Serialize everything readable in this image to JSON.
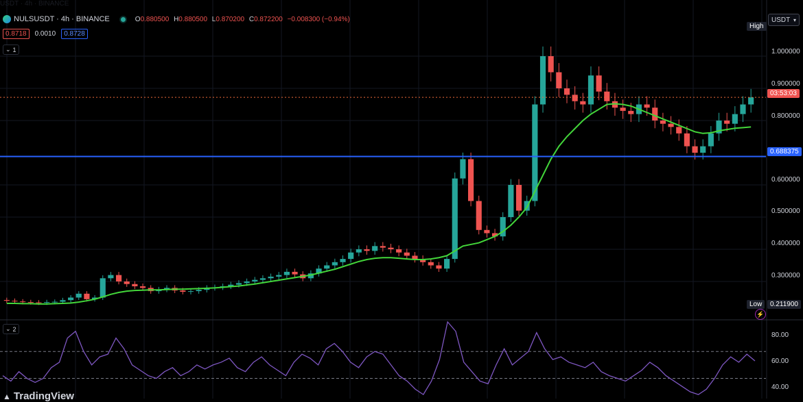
{
  "header": {
    "ghost_line": "USDT · 4h · BINANCE",
    "symbol": "NULSUSDT · 4h · BINANCE",
    "ohlc": {
      "o_label": "O",
      "o": "0.880500",
      "h_label": "H",
      "h": "0.880500",
      "l_label": "L",
      "l": "0.870200",
      "c_label": "C",
      "c": "0.872200",
      "change": "−0.008300 (−0.94%)"
    },
    "bid": "0.8718",
    "spread": "0.0010",
    "ask": "0.8728"
  },
  "panes": {
    "main_tag": "1",
    "rsi_tag": "2"
  },
  "currency_select": "USDT",
  "price_axis": [
    "1.000000",
    "0.900000",
    "0.800000",
    "0.600000",
    "0.500000",
    "0.400000",
    "0.300000"
  ],
  "high_label": "High",
  "low_label": "Low",
  "low_value": "0.211900",
  "countdown": "03:53:03",
  "hline_value": "0.688375",
  "rsi_axis": [
    "80.00",
    "60.00",
    "40.00"
  ],
  "brand": "TradingView",
  "colors": {
    "up": "#26a69a",
    "down": "#ef5350",
    "ma": "#43d63a",
    "rsi": "#7e57c2",
    "hline": "#2962ff",
    "price_line": "#ef6c3a"
  },
  "icons": {
    "collapse": "chevron-down-icon",
    "alert": "lightning-icon",
    "market_status": "green-dot-icon"
  },
  "chart_data": {
    "type": "candlestick",
    "title": "NULSUSDT · 4h · BINANCE",
    "ylim": [
      0.2,
      1.1
    ],
    "last_price": 0.8722,
    "horizontal_line": 0.688375,
    "high_marker": 1.08,
    "low_marker": 0.2119,
    "series": [
      {
        "name": "price",
        "values": [
          0.24,
          0.238,
          0.236,
          0.235,
          0.234,
          0.236,
          0.237,
          0.242,
          0.25,
          0.262,
          0.245,
          0.25,
          0.31,
          0.32,
          0.3,
          0.292,
          0.285,
          0.28,
          0.27,
          0.275,
          0.28,
          0.272,
          0.268,
          0.27,
          0.274,
          0.28,
          0.282,
          0.285,
          0.29,
          0.295,
          0.3,
          0.305,
          0.31,
          0.315,
          0.32,
          0.33,
          0.322,
          0.31,
          0.325,
          0.34,
          0.35,
          0.36,
          0.37,
          0.39,
          0.4,
          0.395,
          0.41,
          0.405,
          0.4,
          0.39,
          0.38,
          0.37,
          0.36,
          0.35,
          0.34,
          0.37,
          0.62,
          0.68,
          0.55,
          0.46,
          0.45,
          0.44,
          0.5,
          0.6,
          0.52,
          0.55,
          0.85,
          1.0,
          0.95,
          0.9,
          0.88,
          0.86,
          0.85,
          0.94,
          0.89,
          0.86,
          0.84,
          0.83,
          0.82,
          0.85,
          0.84,
          0.8,
          0.79,
          0.78,
          0.76,
          0.72,
          0.7,
          0.72,
          0.76,
          0.8,
          0.79,
          0.82,
          0.85,
          0.872
        ]
      },
      {
        "name": "MA",
        "values": [
          0.232,
          0.232,
          0.231,
          0.231,
          0.23,
          0.23,
          0.231,
          0.232,
          0.233,
          0.236,
          0.24,
          0.245,
          0.252,
          0.26,
          0.266,
          0.27,
          0.272,
          0.273,
          0.274,
          0.274,
          0.275,
          0.276,
          0.276,
          0.277,
          0.278,
          0.279,
          0.28,
          0.282,
          0.284,
          0.286,
          0.289,
          0.292,
          0.296,
          0.3,
          0.304,
          0.308,
          0.312,
          0.316,
          0.32,
          0.326,
          0.332,
          0.338,
          0.346,
          0.354,
          0.362,
          0.368,
          0.372,
          0.374,
          0.374,
          0.372,
          0.37,
          0.368,
          0.368,
          0.37,
          0.374,
          0.38,
          0.395,
          0.41,
          0.415,
          0.42,
          0.43,
          0.44,
          0.455,
          0.475,
          0.5,
          0.53,
          0.58,
          0.63,
          0.68,
          0.72,
          0.75,
          0.775,
          0.8,
          0.82,
          0.835,
          0.85,
          0.852,
          0.85,
          0.845,
          0.835,
          0.825,
          0.815,
          0.805,
          0.795,
          0.785,
          0.775,
          0.765,
          0.76,
          0.762,
          0.768,
          0.772,
          0.776,
          0.778,
          0.78
        ]
      }
    ],
    "rsi": {
      "ylim": [
        35,
        92
      ],
      "upper": 70,
      "lower": 50,
      "values": [
        52,
        48,
        55,
        50,
        47,
        50,
        58,
        62,
        80,
        85,
        70,
        60,
        66,
        68,
        80,
        72,
        60,
        56,
        52,
        50,
        55,
        58,
        52,
        55,
        60,
        57,
        60,
        62,
        65,
        58,
        55,
        62,
        66,
        60,
        56,
        52,
        62,
        68,
        65,
        60,
        72,
        76,
        70,
        62,
        58,
        66,
        70,
        68,
        60,
        52,
        48,
        42,
        38,
        48,
        64,
        92,
        85,
        62,
        55,
        48,
        46,
        60,
        72,
        60,
        65,
        70,
        84,
        72,
        64,
        66,
        62,
        60,
        58,
        62,
        55,
        52,
        50,
        48,
        52,
        56,
        62,
        58,
        52,
        48,
        44,
        40,
        38,
        42,
        50,
        60,
        66,
        62,
        68,
        63
      ]
    }
  }
}
